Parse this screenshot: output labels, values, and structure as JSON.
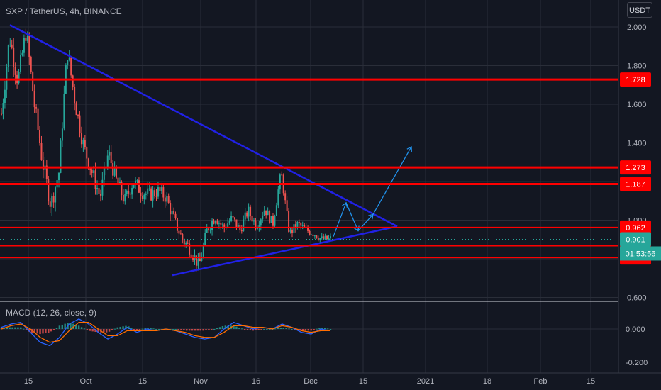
{
  "header": {
    "title": "SXP / TetherUS, 4h, BINANCE",
    "currency": "USDT",
    "macd_title": "MACD (12, 26, close, 9)"
  },
  "colors": {
    "background": "#131722",
    "grid": "#2a2e39",
    "up": "#26a69a",
    "down": "#ef5350",
    "level_line": "#ff0000",
    "trendline": "#2121e6",
    "projection": "#2196f3",
    "price_badge": "#26a69a",
    "macd_line": "#2962ff",
    "signal_line": "#ff6d00"
  },
  "chart_data": [
    {
      "type": "candlestick",
      "ylim": [
        0.6,
        2.1
      ],
      "y_ticks": [
        "2.000",
        "1.800",
        "1.600",
        "1.400",
        "1.000",
        "0.600"
      ],
      "x_ticks": [
        "15",
        "Oct",
        "15",
        "Nov",
        "16",
        "Dec",
        "15",
        "2021",
        "18",
        "Feb",
        "15"
      ],
      "price_levels": [
        {
          "label": "1.728",
          "value": 1.728
        },
        {
          "label": "1.273",
          "value": 1.273
        },
        {
          "label": "1.187",
          "value": 1.187
        },
        {
          "label": "0.962",
          "value": 0.962
        },
        {
          "label": "0.868",
          "value": 0.868
        },
        {
          "label": "0.807",
          "value": 0.807
        }
      ],
      "current_price": {
        "label": "0.901",
        "value": 0.901
      },
      "countdown": "01:53:56",
      "trendlines": {
        "descending": [
          [
            "Sep 10",
            2.01
          ],
          [
            "Dec 19",
            0.968
          ]
        ],
        "ascending": [
          [
            "Oct 24",
            0.715
          ],
          [
            "Dec 19",
            0.968
          ]
        ]
      },
      "projection_path": [
        0.915,
        1.09,
        0.945,
        1.03,
        1.38
      ],
      "price_path": [
        1.55,
        1.95,
        1.72,
        1.98,
        1.6,
        1.3,
        1.08,
        1.25,
        1.88,
        1.6,
        1.38,
        1.25,
        1.12,
        1.35,
        1.2,
        1.1,
        1.2,
        1.15,
        1.13,
        1.15,
        1.12,
        1.0,
        0.9,
        0.85,
        0.76,
        0.95,
        1.02,
        0.96,
        1.01,
        0.95,
        1.05,
        0.97,
        1.06,
        0.98,
        1.25,
        0.93,
        0.98,
        0.95,
        0.93,
        0.9,
        0.905
      ]
    },
    {
      "type": "line",
      "title": "MACD (12, 26, close, 9)",
      "ylim": [
        -0.22,
        0.1
      ],
      "y_ticks": [
        "0.000",
        "-0.200"
      ],
      "series": [
        {
          "name": "MACD",
          "values": [
            0.01,
            0.03,
            0.04,
            -0.02,
            -0.08,
            -0.1,
            -0.05,
            0.03,
            0.06,
            0.03,
            -0.02,
            -0.06,
            -0.03,
            0.01,
            -0.02,
            0.0,
            -0.01,
            0.0,
            -0.01,
            -0.03,
            -0.05,
            -0.06,
            -0.05,
            0.0,
            0.04,
            0.02,
            0.0,
            0.01,
            0.0,
            0.03,
            0.01,
            -0.02,
            -0.03,
            0.0,
            -0.01
          ]
        },
        {
          "name": "Signal",
          "values": [
            0.0,
            0.02,
            0.03,
            0.0,
            -0.05,
            -0.08,
            -0.07,
            -0.01,
            0.04,
            0.04,
            0.0,
            -0.04,
            -0.04,
            -0.01,
            -0.01,
            -0.01,
            -0.01,
            0.0,
            -0.01,
            -0.02,
            -0.04,
            -0.05,
            -0.05,
            -0.02,
            0.02,
            0.02,
            0.01,
            0.01,
            0.0,
            0.02,
            0.01,
            -0.01,
            -0.02,
            -0.01,
            -0.01
          ]
        }
      ]
    }
  ]
}
